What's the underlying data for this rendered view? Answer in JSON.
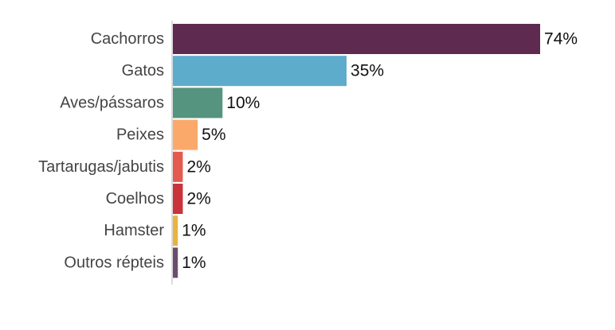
{
  "chart_data": {
    "type": "bar",
    "orientation": "horizontal",
    "title": "",
    "xlabel": "",
    "ylabel": "",
    "xlim": [
      0,
      100
    ],
    "grid": false,
    "legend": "none",
    "categories": [
      "Cachorros",
      "Gatos",
      "Aves/pássaros",
      "Peixes",
      "Tartarugas/jabutis",
      "Coelhos",
      "Hamster",
      "Outros répteis"
    ],
    "values": [
      74,
      35,
      10,
      5,
      2,
      2,
      1,
      1
    ],
    "value_labels": [
      "74%",
      "35%",
      "10%",
      "5%",
      "2%",
      "2%",
      "1%",
      "1%"
    ],
    "colors": [
      "#5e2a50",
      "#5eaccb",
      "#55947f",
      "#fba96a",
      "#e35a4e",
      "#c9333a",
      "#e8b340",
      "#6a4d6b"
    ]
  }
}
